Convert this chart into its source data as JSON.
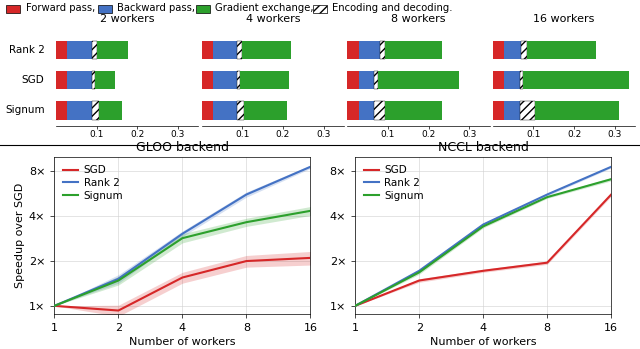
{
  "bar_data": {
    "worker_counts": [
      "2 workers",
      "4 workers",
      "8 workers",
      "16 workers"
    ],
    "row_labels": [
      "Rank 2",
      "SGD",
      "Signum"
    ],
    "xlim": [
      0,
      0.35
    ],
    "xticks": [
      0.1,
      0.2,
      0.3
    ],
    "segments": {
      "2 workers": {
        "Rank 2": {
          "red": 0.028,
          "blue": 0.06,
          "hatch": 0.013,
          "green": 0.075
        },
        "SGD": {
          "red": 0.028,
          "blue": 0.06,
          "hatch": 0.009,
          "green": 0.048
        },
        "Signum": {
          "red": 0.028,
          "blue": 0.06,
          "hatch": 0.018,
          "green": 0.055
        }
      },
      "4 workers": {
        "Rank 2": {
          "red": 0.028,
          "blue": 0.058,
          "hatch": 0.013,
          "green": 0.12
        },
        "SGD": {
          "red": 0.028,
          "blue": 0.058,
          "hatch": 0.009,
          "green": 0.12
        },
        "Signum": {
          "red": 0.028,
          "blue": 0.058,
          "hatch": 0.018,
          "green": 0.105
        }
      },
      "8 workers": {
        "Rank 2": {
          "red": 0.028,
          "blue": 0.052,
          "hatch": 0.013,
          "green": 0.14
        },
        "SGD": {
          "red": 0.028,
          "blue": 0.038,
          "hatch": 0.009,
          "green": 0.2
        },
        "Signum": {
          "red": 0.028,
          "blue": 0.038,
          "hatch": 0.028,
          "green": 0.14
        }
      },
      "16 workers": {
        "Rank 2": {
          "red": 0.028,
          "blue": 0.042,
          "hatch": 0.013,
          "green": 0.17
        },
        "SGD": {
          "red": 0.028,
          "blue": 0.038,
          "hatch": 0.009,
          "green": 0.26
        },
        "Signum": {
          "red": 0.028,
          "blue": 0.038,
          "hatch": 0.038,
          "green": 0.205
        }
      }
    }
  },
  "line_data": {
    "workers": [
      1,
      2,
      4,
      8,
      16
    ],
    "gloo": {
      "SGD": {
        "mean": [
          1.0,
          0.93,
          1.55,
          2.0,
          2.1
        ],
        "low": [
          1.0,
          0.85,
          1.42,
          1.82,
          1.88
        ],
        "high": [
          1.0,
          1.01,
          1.68,
          2.18,
          2.32
        ]
      },
      "Rank2": {
        "mean": [
          1.0,
          1.52,
          3.05,
          5.6,
          8.6
        ],
        "low": [
          1.0,
          1.42,
          2.92,
          5.38,
          8.38
        ],
        "high": [
          1.0,
          1.62,
          3.18,
          5.82,
          8.82
        ]
      },
      "Signum": {
        "mean": [
          1.0,
          1.48,
          2.85,
          3.65,
          4.35
        ],
        "low": [
          1.0,
          1.38,
          2.65,
          3.42,
          4.05
        ],
        "high": [
          1.0,
          1.58,
          3.05,
          3.88,
          4.65
        ]
      }
    },
    "nccl": {
      "SGD": {
        "mean": [
          1.0,
          1.48,
          1.72,
          1.95,
          5.6
        ],
        "low": [
          1.0,
          1.44,
          1.68,
          1.9,
          5.45
        ],
        "high": [
          1.0,
          1.52,
          1.76,
          2.0,
          5.75
        ]
      },
      "Rank2": {
        "mean": [
          1.0,
          1.72,
          3.52,
          5.6,
          8.6
        ],
        "low": [
          1.0,
          1.67,
          3.44,
          5.48,
          8.45
        ],
        "high": [
          1.0,
          1.77,
          3.6,
          5.72,
          8.75
        ]
      },
      "Signum": {
        "mean": [
          1.0,
          1.68,
          3.42,
          5.38,
          7.1
        ],
        "low": [
          1.0,
          1.63,
          3.34,
          5.28,
          6.92
        ],
        "high": [
          1.0,
          1.73,
          3.5,
          5.48,
          7.28
        ]
      }
    }
  },
  "bar_colors": {
    "red": "#d62728",
    "blue": "#4472c4",
    "green": "#2ca02c"
  },
  "line_colors": {
    "SGD": "#d62728",
    "Rank2": "#4472c4",
    "Signum": "#2ca02c"
  },
  "legend_items": [
    {
      "label": "Forward pass",
      "color": "#d62728",
      "hatch": ""
    },
    {
      "label": "Backward pass",
      "color": "#4472c4",
      "hatch": ""
    },
    {
      "label": "Gradient exchange",
      "color": "#2ca02c",
      "hatch": ""
    },
    {
      "label": "Encoding and decoding",
      "color": "white",
      "hatch": "////"
    }
  ],
  "ylabel_line": "Speedup over SGD",
  "xlabel_line": "Number of workers",
  "title_gloo": "GLOO backend",
  "title_nccl": "NCCL backend"
}
